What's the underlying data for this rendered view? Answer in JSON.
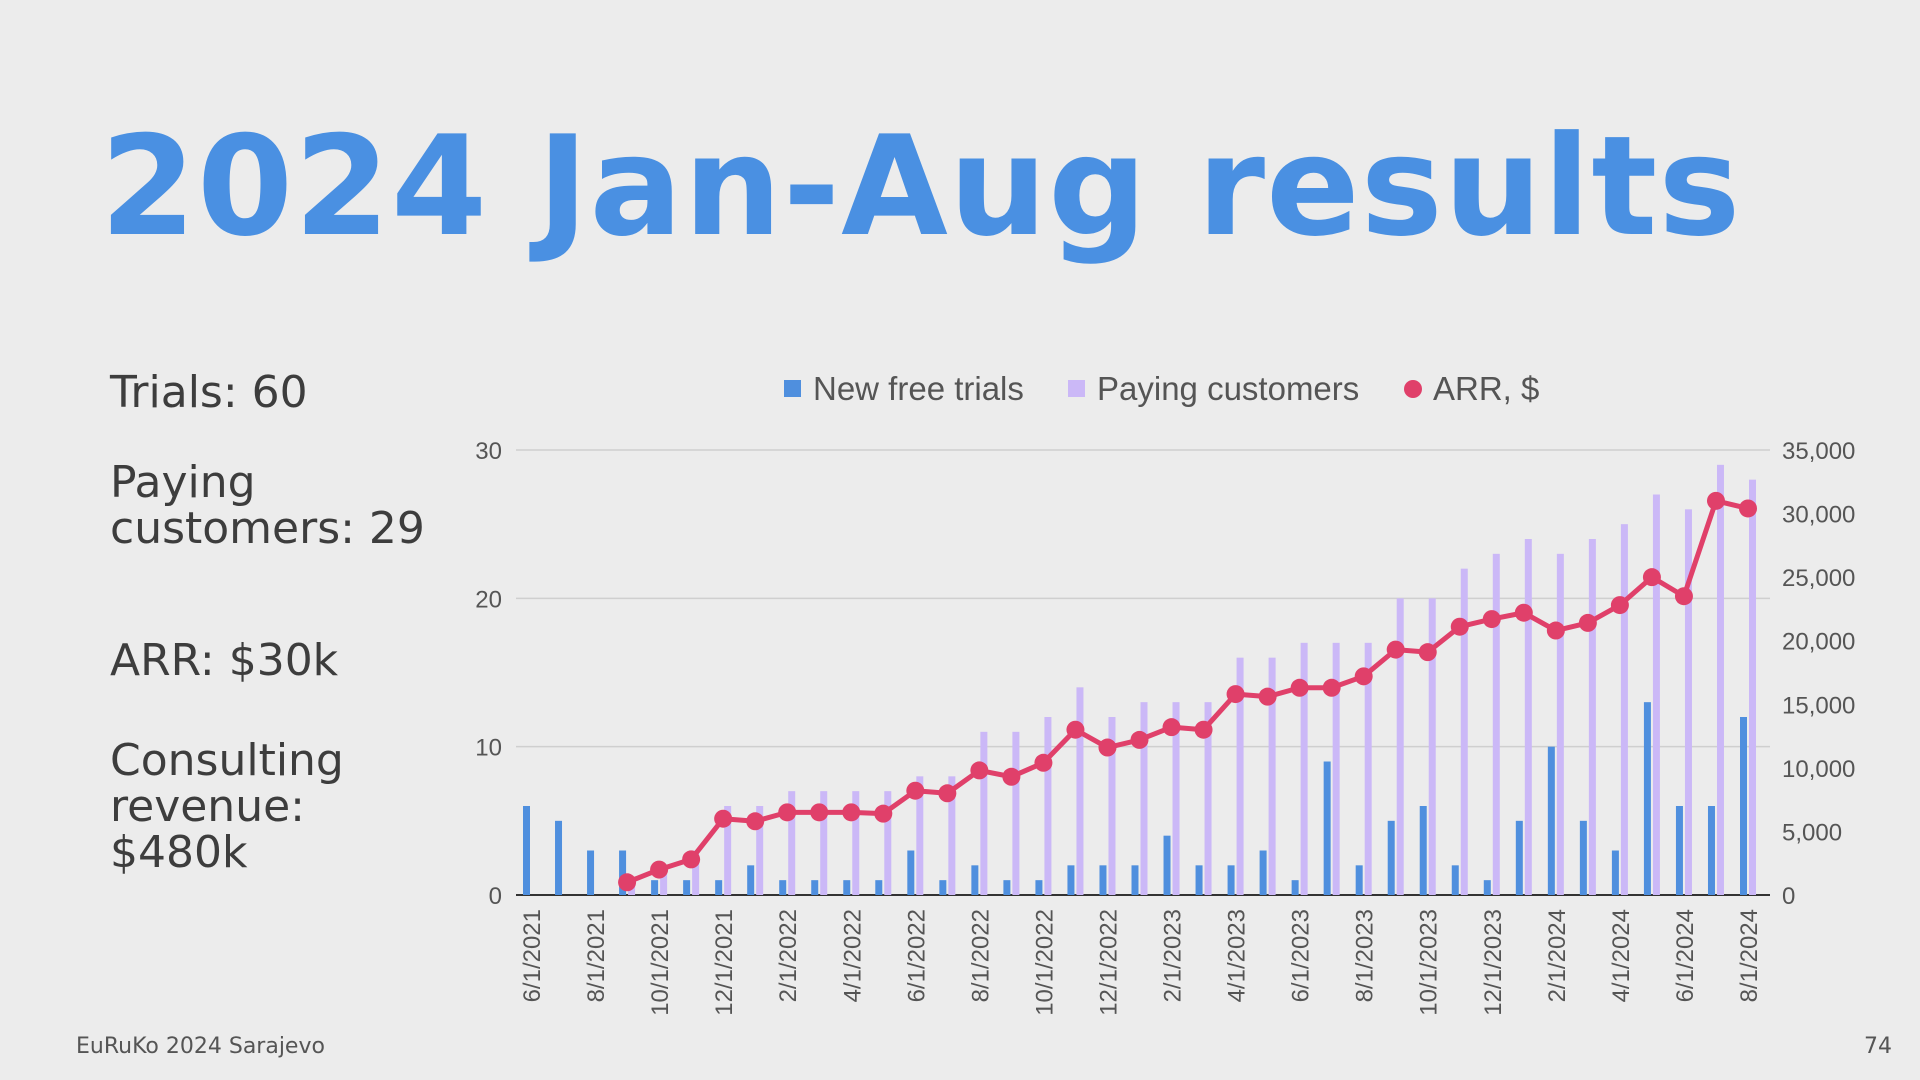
{
  "slide": {
    "title": "2024 Jan-Aug results",
    "stats": {
      "trials": "Trials: 60",
      "paying": "Paying customers: 29",
      "arr": "ARR: $30k",
      "consulting": "Consulting revenue: $480k"
    },
    "footer_left": "EuRuKo 2024 Sarajevo",
    "page_number": "74"
  },
  "chart_data": {
    "type": "bar",
    "title": "",
    "legend_position": "top",
    "grid": true,
    "colors": {
      "trials": "#4f8fde",
      "paying": "#cbb8f7",
      "arr": "#e0406a"
    },
    "x_tick_labels": [
      "6/1/2021",
      "8/1/2021",
      "10/1/2021",
      "12/1/2021",
      "2/1/2022",
      "4/1/2022",
      "6/1/2022",
      "8/1/2022",
      "10/1/2022",
      "12/1/2022",
      "2/1/2023",
      "4/1/2023",
      "6/1/2023",
      "8/1/2023",
      "10/1/2023",
      "12/1/2023",
      "2/1/2024",
      "4/1/2024",
      "6/1/2024",
      "8/1/2024"
    ],
    "left_axis": {
      "ylim": [
        0,
        30
      ],
      "ticks": [
        "0",
        "10",
        "20",
        "30"
      ]
    },
    "right_axis": {
      "ylim": [
        0,
        35000
      ],
      "ticks": [
        "0",
        "5,000",
        "10,000",
        "15,000",
        "20,000",
        "25,000",
        "30,000",
        "35,000"
      ]
    },
    "series": [
      {
        "name": "New free trials",
        "type": "bar",
        "axis": "left",
        "values": [
          6,
          5,
          3,
          3,
          1,
          1,
          1,
          2,
          1,
          1,
          1,
          1,
          3,
          1,
          2,
          1,
          1,
          2,
          2,
          2,
          4,
          2,
          2,
          3,
          1,
          9,
          2,
          5,
          6,
          2,
          1,
          5,
          10,
          5,
          3,
          13,
          6,
          6,
          12
        ]
      },
      {
        "name": "Paying customers",
        "type": "bar",
        "axis": "left",
        "values": [
          0,
          0,
          0,
          1,
          2,
          3,
          6,
          6,
          7,
          7,
          7,
          7,
          8,
          8,
          11,
          11,
          12,
          14,
          12,
          13,
          13,
          13,
          16,
          16,
          17,
          17,
          17,
          20,
          20,
          22,
          23,
          24,
          23,
          24,
          25,
          27,
          26,
          29,
          28
        ]
      },
      {
        "name": "ARR, $",
        "type": "line",
        "axis": "right",
        "values": [
          null,
          null,
          null,
          1000,
          2000,
          2800,
          6000,
          5800,
          6500,
          6500,
          6500,
          6400,
          8200,
          8000,
          9800,
          9300,
          10400,
          13000,
          11600,
          12200,
          13200,
          13000,
          15800,
          15600,
          16300,
          16300,
          17200,
          19300,
          19100,
          21100,
          21700,
          22200,
          20800,
          21400,
          22800,
          25000,
          23500,
          31000,
          30400
        ]
      }
    ]
  }
}
